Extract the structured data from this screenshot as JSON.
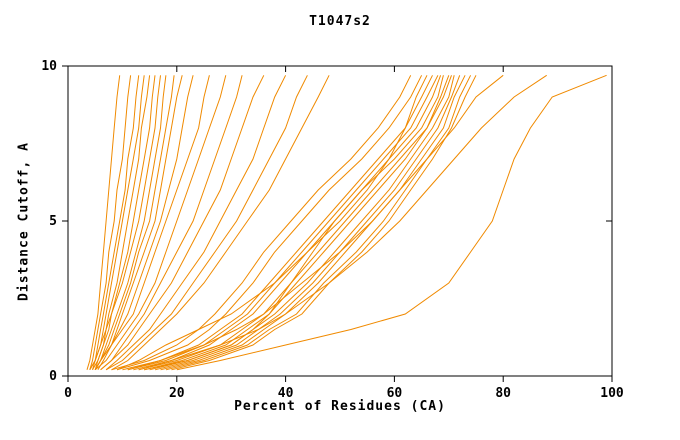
{
  "page": {
    "title": "T1047s2"
  },
  "chart_data": {
    "type": "line",
    "title": "T1047s2",
    "xlabel": "Percent of Residues (CA)",
    "ylabel": "Distance Cutoff, A",
    "xlim": [
      0,
      100
    ],
    "ylim": [
      0,
      10
    ],
    "xticks": [
      0,
      20,
      40,
      60,
      80,
      100
    ],
    "yticks": [
      0,
      5,
      10
    ],
    "grid": false,
    "legend": "none",
    "line_color": "#f08a00",
    "axis_color": "#000000",
    "background_color": "#ffffff",
    "y_cutoffs": [
      0.2,
      0.5,
      1,
      1.5,
      2,
      3,
      4,
      5,
      6,
      7,
      8,
      9,
      9.7
    ],
    "series": [
      [
        3.5,
        4,
        4.5,
        5,
        5.5,
        6,
        6.5,
        7,
        7.5,
        8,
        8.5,
        9,
        9.5
      ],
      [
        4,
        4.5,
        5,
        5.5,
        6,
        7,
        7.5,
        8.5,
        9,
        10,
        10.5,
        11,
        11.5
      ],
      [
        4,
        5,
        5.5,
        6,
        6.5,
        7.5,
        8.5,
        9.5,
        10.5,
        11,
        12,
        12.5,
        13
      ],
      [
        4.5,
        5,
        6,
        6.5,
        7,
        8,
        9,
        10,
        11,
        12,
        13,
        13.5,
        14
      ],
      [
        4,
        5,
        6,
        7,
        7.5,
        9,
        10,
        11,
        12,
        13,
        13.5,
        14.5,
        15
      ],
      [
        5,
        5.5,
        6.5,
        7.5,
        8,
        9.5,
        11,
        12,
        13,
        14,
        15,
        15.5,
        16
      ],
      [
        4.5,
        5.5,
        6.5,
        7,
        8,
        10,
        11.5,
        13,
        14,
        15,
        16,
        16.5,
        17
      ],
      [
        5,
        6,
        7,
        8,
        9,
        11,
        12.5,
        14,
        15,
        16,
        17,
        17.5,
        18
      ],
      [
        5,
        6,
        7.5,
        8.5,
        9.5,
        11.5,
        13,
        15,
        16,
        17,
        18,
        19,
        19.5
      ],
      [
        5.5,
        6.5,
        8,
        9,
        10,
        12,
        14,
        16,
        17,
        18,
        19,
        20,
        21
      ],
      [
        5,
        6,
        8,
        9.5,
        11,
        13,
        15,
        17,
        18.5,
        20,
        21,
        22,
        23
      ],
      [
        5,
        6,
        8,
        10,
        12,
        14,
        16,
        18,
        20,
        22,
        24,
        25,
        26
      ],
      [
        5,
        7,
        9,
        11,
        13,
        16,
        18,
        20,
        22,
        24,
        26,
        28,
        29
      ],
      [
        6,
        8,
        10,
        12,
        14,
        17,
        20,
        23,
        25,
        27,
        29,
        31,
        32
      ],
      [
        6,
        8,
        11,
        13,
        15,
        19,
        22,
        25,
        28,
        30,
        32,
        34,
        36
      ],
      [
        7,
        9,
        12,
        15,
        17,
        21,
        25,
        28,
        31,
        34,
        36,
        38,
        40
      ],
      [
        7,
        10,
        13,
        16,
        19,
        23,
        27,
        31,
        34,
        37,
        40,
        42,
        44
      ],
      [
        8,
        11,
        14,
        17,
        20,
        25,
        29,
        33,
        37,
        40,
        43,
        46,
        48
      ],
      [
        8,
        14,
        20,
        24,
        27,
        32,
        36,
        41,
        46,
        52,
        57,
        61,
        63
      ],
      [
        9,
        15,
        22,
        26,
        29,
        34,
        38,
        43,
        48,
        54,
        59,
        63,
        65
      ],
      [
        9,
        13,
        18,
        24,
        30,
        38,
        44,
        50,
        55,
        59,
        62,
        64,
        66
      ],
      [
        10,
        17,
        24,
        28,
        32,
        37,
        42,
        47,
        52,
        57,
        62,
        65,
        67
      ],
      [
        11,
        18,
        25,
        29,
        33,
        38,
        43,
        48,
        53,
        58,
        63,
        66,
        68
      ],
      [
        12,
        19,
        26,
        30,
        34,
        39,
        44,
        49,
        54,
        59,
        64,
        67,
        68.5
      ],
      [
        14,
        22,
        30,
        34,
        37,
        41,
        45,
        49,
        54,
        60,
        65,
        68,
        69
      ],
      [
        13,
        20,
        28,
        32,
        36,
        41,
        46,
        51,
        56,
        61,
        66,
        68.5,
        70
      ],
      [
        14,
        21,
        29,
        33,
        37,
        42,
        47,
        52,
        57,
        62,
        66,
        69,
        70.5
      ],
      [
        15,
        22,
        30,
        34,
        38,
        44,
        49,
        54,
        59,
        63,
        67,
        70,
        71
      ],
      [
        16,
        23,
        31,
        35,
        39,
        45,
        50,
        55,
        60,
        64,
        68,
        70.5,
        72
      ],
      [
        17,
        24,
        32,
        36,
        40,
        46,
        51,
        56,
        61,
        65,
        69,
        71,
        73
      ],
      [
        18,
        25,
        33,
        37,
        42,
        47,
        53,
        58,
        62,
        66,
        70,
        72,
        74
      ],
      [
        19,
        26,
        34,
        38,
        43,
        48,
        54,
        59,
        63,
        67,
        70.5,
        73,
        75
      ],
      [
        11,
        17,
        25,
        31,
        36,
        43,
        50,
        56,
        61,
        66,
        71,
        75,
        80
      ],
      [
        13,
        19,
        28,
        35,
        40,
        48,
        55,
        61,
        66,
        71,
        76,
        82,
        88
      ],
      [
        20,
        28,
        40,
        52,
        62,
        70,
        74,
        78,
        80,
        82,
        85,
        89,
        99
      ]
    ]
  }
}
